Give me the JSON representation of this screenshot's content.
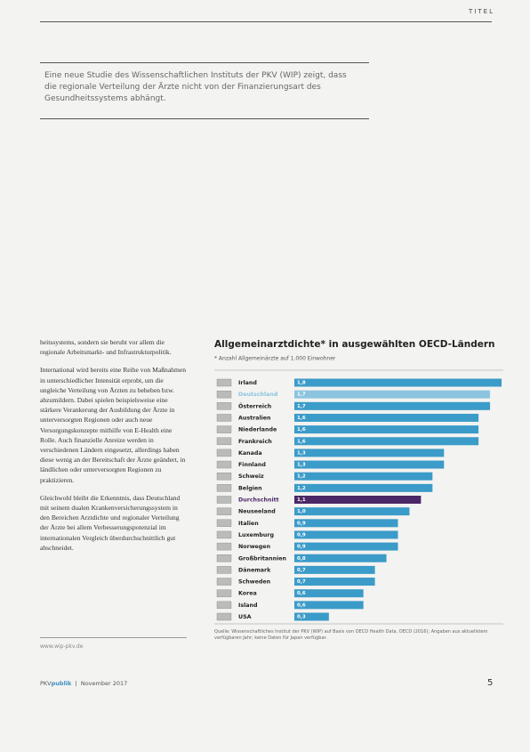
{
  "header": {
    "section": "TITEL"
  },
  "intro": "Eine neue Studie des Wissenschaftlichen Instituts der PKV (WIP) zeigt, dass die regionale Verteilung der Ärzte nicht von der Finanzierungsart des Gesundheitssystems abhängt.",
  "body": [
    "heitssystems, sondern sie beruht vor allem die regionale Arbeitsmarkt- und Infrastrukturpolitik.",
    "International wird bereits eine Reihe von Maßnahmen in unterschiedlicher Intensität erprobt, um die ungleiche Verteilung von Ärzten zu beheben bzw. abzumildern. Dabei spielen beispielsweise eine stärkere Verankerung der Ausbildung der Ärzte in unterversorgten Regionen oder auch neue Versorgungskonzepte mithilfe von E-Health eine Rolle. Auch finanzielle Anreize werden in verschiedenen Ländern eingesetzt, allerdings haben diese wenig an der Bereitschaft der Ärzte geändert, in ländlichen oder unterversorgten Regionen zu praktizieren.",
    "Gleichwohl bleibt die Erkenntnis, dass Deutschland mit seinem dualen Krankenversicherungssystem in den Bereichen Arztdichte und regionaler Verteilung der Ärzte bei allem Verbesserungspotenzial im internationalen Vergleich überdurchschnittlich gut abschneidet."
  ],
  "link": "www.wip-pkv.de",
  "footer": {
    "brand_prefix": "PKV",
    "brand": "publik",
    "issue": "November 2017",
    "page": "5"
  },
  "chart_data": {
    "type": "bar",
    "orientation": "horizontal",
    "title": "Allgemeinarztdichte* in ausgewählten OECD-Ländern",
    "subtitle": "* Anzahl Allgemeinärzte auf 1.000 Einwohner",
    "categories": [
      "Irland",
      "Deutschland",
      "Österreich",
      "Australien",
      "Niederlande",
      "Frankreich",
      "Kanada",
      "Finnland",
      "Schweiz",
      "Belgien",
      "Durchschnitt",
      "Neuseeland",
      "Italien",
      "Luxemburg",
      "Norwegen",
      "Großbritannien",
      "Dänemark",
      "Schweden",
      "Korea",
      "Island",
      "USA"
    ],
    "values": [
      1.8,
      1.7,
      1.7,
      1.6,
      1.6,
      1.6,
      1.3,
      1.3,
      1.2,
      1.2,
      1.1,
      1.0,
      0.9,
      0.9,
      0.9,
      0.8,
      0.7,
      0.7,
      0.6,
      0.6,
      0.3
    ],
    "value_labels": [
      "1,8",
      "1,7",
      "1,7",
      "1,6",
      "1,6",
      "1,6",
      "1,3",
      "1,3",
      "1,2",
      "1,2",
      "1,1",
      "1,0",
      "0,9",
      "0,9",
      "0,9",
      "0,8",
      "0,7",
      "0,7",
      "0,6",
      "0,6",
      "0,3"
    ],
    "colors": [
      "#3b9bc9",
      "#8cc4df",
      "#3b9bc9",
      "#3b9bc9",
      "#3b9bc9",
      "#3b9bc9",
      "#3b9bc9",
      "#3b9bc9",
      "#3b9bc9",
      "#3b9bc9",
      "#4a2766",
      "#3b9bc9",
      "#3b9bc9",
      "#3b9bc9",
      "#3b9bc9",
      "#3b9bc9",
      "#3b9bc9",
      "#3b9bc9",
      "#3b9bc9",
      "#3b9bc9",
      "#3b9bc9"
    ],
    "source": "Quelle: Wissenschaftliches Institut der PKV (WIP) auf Basis von OECD Health Data, OECD (2016); Angaben aus aktuellstem verfügbaren Jahr; keine Daten für Japan verfügbar."
  }
}
